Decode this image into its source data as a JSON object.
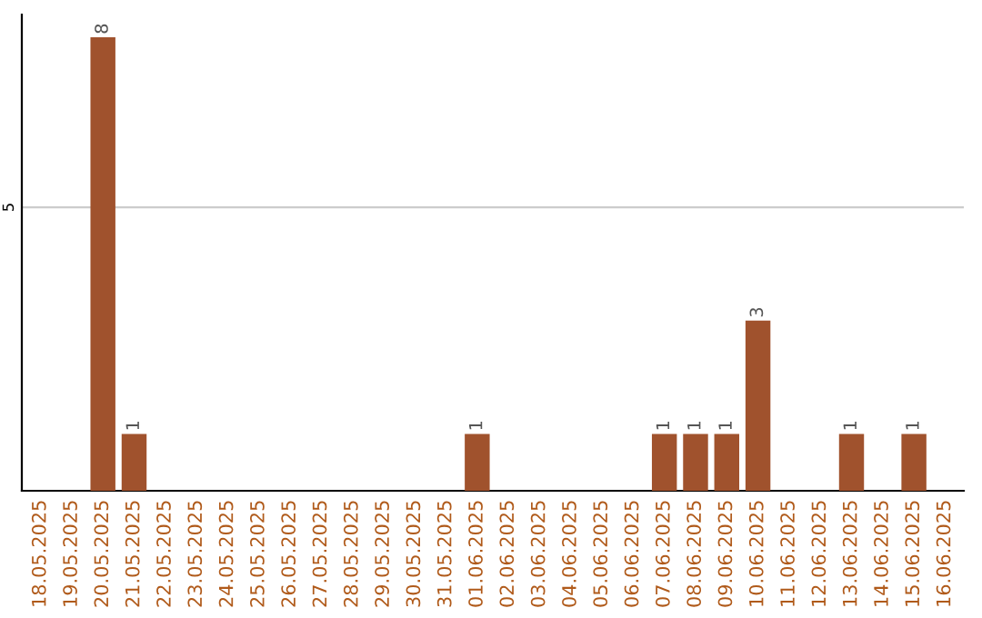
{
  "chart_data": {
    "type": "bar",
    "categories": [
      "18.05.2025",
      "19.05.2025",
      "20.05.2025",
      "21.05.2025",
      "22.05.2025",
      "23.05.2025",
      "24.05.2025",
      "25.05.2025",
      "26.05.2025",
      "27.05.2025",
      "28.05.2025",
      "29.05.2025",
      "30.05.2025",
      "31.05.2025",
      "01.06.2025",
      "02.06.2025",
      "03.06.2025",
      "04.06.2025",
      "05.06.2025",
      "06.06.2025",
      "07.06.2025",
      "08.06.2025",
      "09.06.2025",
      "10.06.2025",
      "11.06.2025",
      "12.06.2025",
      "13.06.2025",
      "14.06.2025",
      "15.06.2025",
      "16.06.2025"
    ],
    "values": [
      0,
      0,
      8,
      1,
      0,
      0,
      0,
      0,
      0,
      0,
      0,
      0,
      0,
      0,
      1,
      0,
      0,
      0,
      0,
      0,
      1,
      1,
      1,
      3,
      0,
      0,
      1,
      0,
      1,
      0
    ],
    "color": "#a0522d",
    "value_labels": [
      null,
      null,
      "8",
      "1",
      null,
      null,
      null,
      null,
      null,
      null,
      null,
      null,
      null,
      null,
      "1",
      null,
      null,
      null,
      null,
      null,
      "1",
      "1",
      "1",
      "3",
      null,
      null,
      "1",
      null,
      "1",
      null
    ],
    "ylim": [
      0,
      8.4
    ],
    "yticks": [
      5
    ],
    "grid": "y"
  }
}
